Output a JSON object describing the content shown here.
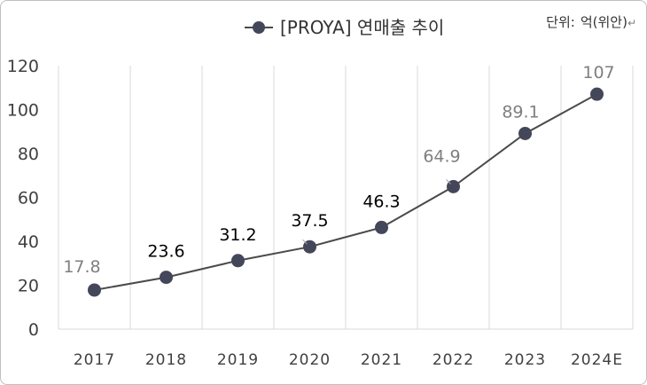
{
  "chart_data": {
    "type": "line",
    "title": "",
    "xlabel": "",
    "ylabel": "",
    "categories": [
      "2017",
      "2018",
      "2019",
      "2020",
      "2021",
      "2022",
      "2023",
      "2024E"
    ],
    "series": [
      {
        "name": "[PROYA] 연매출 추이",
        "values": [
          17.8,
          23.6,
          31.2,
          37.5,
          46.3,
          64.9,
          89.1,
          107
        ],
        "labels": [
          "17.8",
          "23.6",
          "31.2",
          "37.5",
          "46.3",
          "64.9",
          "89.1",
          "107"
        ]
      }
    ],
    "ylim": [
      0,
      120
    ],
    "yticks": [
      0,
      20,
      40,
      60,
      80,
      100,
      120
    ],
    "grid": "vertical",
    "legend": "top-center",
    "colors": {
      "line": "#4a4a4a",
      "marker": "#44475a",
      "label_dark": "#000000",
      "label_light": "#7f7f7f",
      "grid": "#d9d9d9"
    },
    "label_color_keys": [
      "label_light",
      "label_dark",
      "label_dark",
      "label_dark",
      "label_dark",
      "label_light",
      "label_light",
      "label_light"
    ]
  },
  "unit_note": {
    "label": "단위:",
    "value": "억(위안)",
    "return_glyph": "↵"
  }
}
